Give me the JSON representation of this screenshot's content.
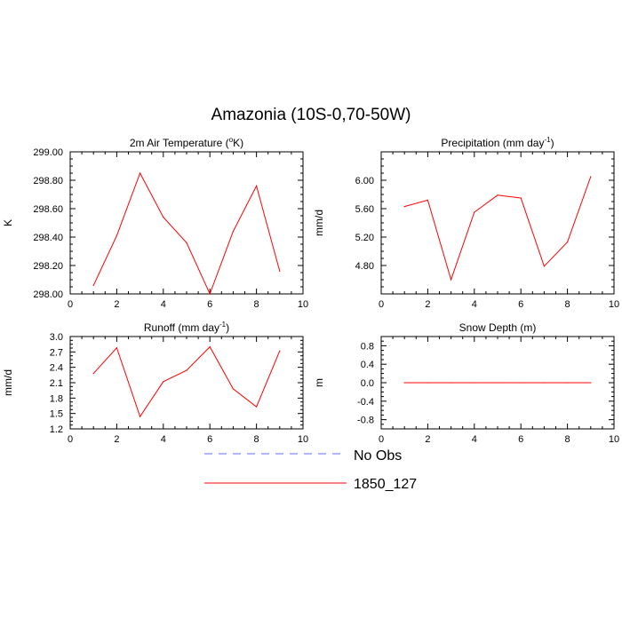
{
  "figure": {
    "title": "Amazonia (10S-0,70-50W)",
    "legend": {
      "items": [
        {
          "label": "No Obs",
          "color": "#6666ff",
          "style": "dashed"
        },
        {
          "label": "1850_127",
          "color": "#ff0000",
          "style": "solid"
        }
      ]
    }
  },
  "chart_data": [
    {
      "type": "line",
      "title": "2m Air Temperature (",
      "title_sup": "o",
      "title_suffix": "K)",
      "xlabel": "",
      "ylabel": "K",
      "xlim": [
        0,
        10
      ],
      "ylim": [
        298.0,
        299.0
      ],
      "xticks": [
        "0",
        "2",
        "4",
        "6",
        "8",
        "10"
      ],
      "yticks": [
        "298.00",
        "298.20",
        "298.40",
        "298.60",
        "298.80",
        "299.00"
      ],
      "series": [
        {
          "name": "1850_127",
          "color": "#ff0000",
          "x": [
            1,
            2,
            3,
            4,
            5,
            6,
            7,
            8,
            9
          ],
          "values": [
            298.06,
            298.41,
            298.85,
            298.54,
            298.36,
            298.0,
            298.44,
            298.76,
            298.16
          ]
        }
      ]
    },
    {
      "type": "line",
      "title": "Precipitation (mm day",
      "title_sup": "-1",
      "title_suffix": ")",
      "xlabel": "",
      "ylabel": "mm/d",
      "xlim": [
        0,
        10
      ],
      "ylim": [
        4.4,
        6.4
      ],
      "xticks": [
        "0",
        "2",
        "4",
        "6",
        "8",
        "10"
      ],
      "yticks": [
        "4.80",
        "5.20",
        "5.60",
        "6.00"
      ],
      "series": [
        {
          "name": "1850_127",
          "color": "#ff0000",
          "x": [
            1,
            2,
            3,
            4,
            5,
            6,
            7,
            8,
            9
          ],
          "values": [
            5.63,
            5.72,
            4.6,
            5.55,
            5.79,
            5.75,
            4.79,
            5.13,
            6.05
          ]
        }
      ]
    },
    {
      "type": "line",
      "title": "Runoff (mm day",
      "title_sup": "-1",
      "title_suffix": ")",
      "xlabel": "",
      "ylabel": "mm/d",
      "xlim": [
        0,
        10
      ],
      "ylim": [
        1.2,
        3.0
      ],
      "xticks": [
        "0",
        "2",
        "4",
        "6",
        "8",
        "10"
      ],
      "yticks": [
        "1.2",
        "1.5",
        "1.8",
        "2.1",
        "2.4",
        "2.7",
        "3.0"
      ],
      "series": [
        {
          "name": "1850_127",
          "color": "#ff0000",
          "x": [
            1,
            2,
            3,
            4,
            5,
            6,
            7,
            8,
            9
          ],
          "values": [
            2.28,
            2.78,
            1.44,
            2.12,
            2.34,
            2.8,
            1.98,
            1.63,
            2.72
          ]
        }
      ]
    },
    {
      "type": "line",
      "title": "Snow Depth (m)",
      "title_sup": "",
      "title_suffix": "",
      "xlabel": "",
      "ylabel": "m",
      "xlim": [
        0,
        10
      ],
      "ylim": [
        -1.0,
        1.0
      ],
      "xticks": [
        "0",
        "2",
        "4",
        "6",
        "8",
        "10"
      ],
      "yticks": [
        "-0.8",
        "-0.4",
        "0.0",
        "0.4",
        "0.8"
      ],
      "series": [
        {
          "name": "1850_127",
          "color": "#ff0000",
          "x": [
            1,
            2,
            3,
            4,
            5,
            6,
            7,
            8,
            9
          ],
          "values": [
            0,
            0,
            0,
            0,
            0,
            0,
            0,
            0,
            0
          ]
        }
      ]
    }
  ]
}
